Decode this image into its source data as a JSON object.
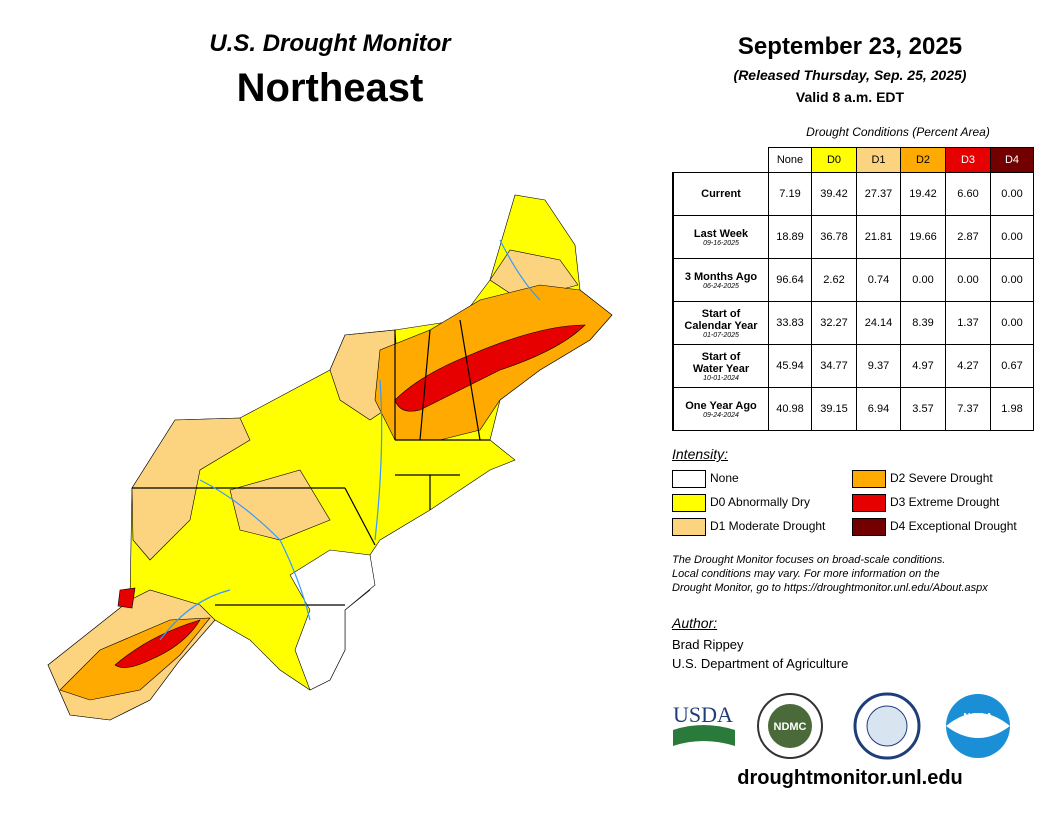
{
  "header": {
    "subtitle": "U.S. Drought Monitor",
    "title": "Northeast",
    "date": "September 23, 2025",
    "released": "(Released Thursday, Sep. 25, 2025)",
    "valid": "Valid 8 a.m. EDT"
  },
  "table": {
    "caption": "Drought Conditions (Percent Area)",
    "columns": [
      {
        "label": "None",
        "color": "#ffffff",
        "text": "#000000"
      },
      {
        "label": "D0",
        "color": "#ffff00",
        "text": "#000000"
      },
      {
        "label": "D1",
        "color": "#fcd37f",
        "text": "#000000"
      },
      {
        "label": "D2",
        "color": "#ffaa00",
        "text": "#000000"
      },
      {
        "label": "D3",
        "color": "#e60000",
        "text": "#ffffff"
      },
      {
        "label": "D4",
        "color": "#730000",
        "text": "#ffffff"
      }
    ],
    "rows": [
      {
        "label": [
          "Current"
        ],
        "values": [
          "7.19",
          "39.42",
          "27.37",
          "19.42",
          "6.60",
          "0.00"
        ]
      },
      {
        "label": [
          "Last Week"
        ],
        "date": "09-16-2025",
        "values": [
          "18.89",
          "36.78",
          "21.81",
          "19.66",
          "2.87",
          "0.00"
        ]
      },
      {
        "label": [
          "3 Months Ago"
        ],
        "date": "06-24-2025",
        "values": [
          "96.64",
          "2.62",
          "0.74",
          "0.00",
          "0.00",
          "0.00"
        ]
      },
      {
        "label": [
          "Start of",
          "Calendar Year"
        ],
        "date": "01-07-2025",
        "values": [
          "33.83",
          "32.27",
          "24.14",
          "8.39",
          "1.37",
          "0.00"
        ]
      },
      {
        "label": [
          "Start of",
          "Water Year"
        ],
        "date": "10-01-2024",
        "values": [
          "45.94",
          "34.77",
          "9.37",
          "4.97",
          "4.27",
          "0.67"
        ]
      },
      {
        "label": [
          "One Year Ago"
        ],
        "date": "09-24-2024",
        "values": [
          "40.98",
          "39.15",
          "6.94",
          "3.57",
          "7.37",
          "1.98"
        ]
      }
    ]
  },
  "legend": {
    "title": "Intensity:",
    "items": [
      {
        "label": "None",
        "color": "#ffffff"
      },
      {
        "label": "D0 Abnormally Dry",
        "color": "#ffff00"
      },
      {
        "label": "D1 Moderate Drought",
        "color": "#fcd37f"
      },
      {
        "label": "D2 Severe Drought",
        "color": "#ffaa00"
      },
      {
        "label": "D3 Extreme Drought",
        "color": "#e60000"
      },
      {
        "label": "D4 Exceptional Drought",
        "color": "#730000"
      }
    ]
  },
  "note": [
    "The Drought Monitor focuses on broad-scale conditions.",
    "Local conditions may vary. For more information on the",
    "Drought Monitor, go to https://droughtmonitor.unl.edu/About.aspx"
  ],
  "author": {
    "title": "Author:",
    "name": "Brad Rippey",
    "org": "U.S. Department of Agriculture"
  },
  "logos": {
    "usda": "USDA",
    "ndmc": "NDMC",
    "noaa": "NOAA"
  },
  "url": "droughtmonitor.unl.edu"
}
